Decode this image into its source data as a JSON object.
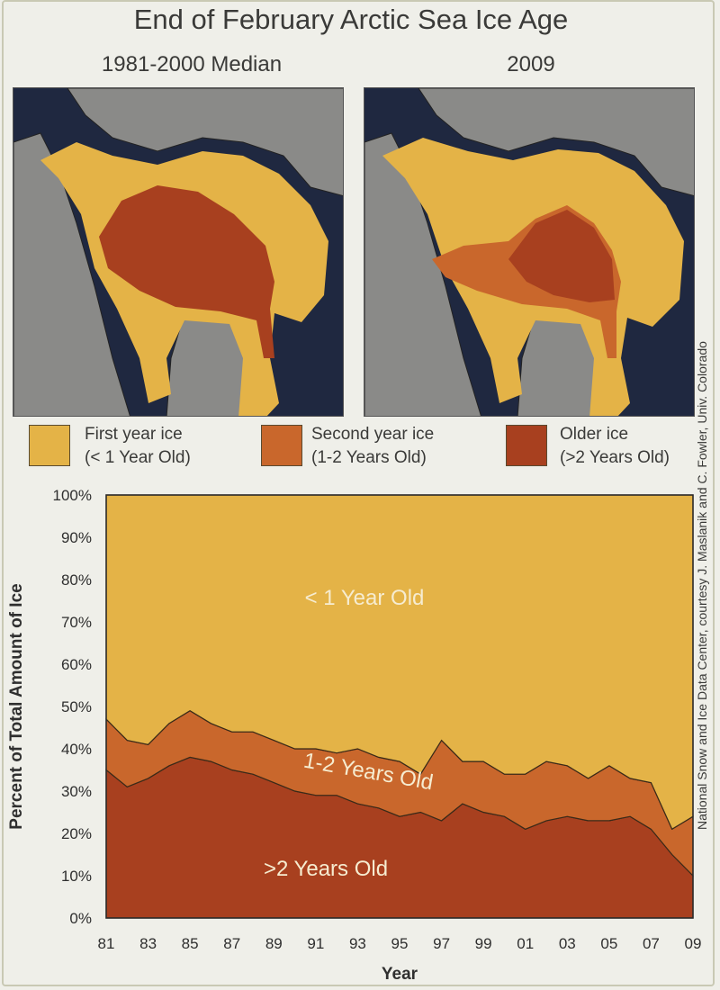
{
  "title": "End of February Arctic Sea Ice Age",
  "maps": [
    {
      "label": "1981-2000 Median"
    },
    {
      "label": "2009"
    }
  ],
  "legend": [
    {
      "line1": "First year ice",
      "line2": "(< 1 Year Old)",
      "color": "#e4b347"
    },
    {
      "line1": "Second year ice",
      "line2": "(1-2 Years Old)",
      "color": "#c9672c"
    },
    {
      "line1": "Older ice",
      "line2": "(>2 Years Old)",
      "color": "#a8401f"
    }
  ],
  "credit": "National Snow and Ice Data Center, courtesy J. Maslanik and C. Fowler, Univ. Colorado",
  "colors": {
    "first_year": "#e4b347",
    "second_year": "#c9672c",
    "older": "#a8401f",
    "land": "#8a8a88",
    "ocean": "#1f2840"
  },
  "chart_data": {
    "type": "area",
    "x": [
      1981,
      1982,
      1983,
      1984,
      1985,
      1986,
      1987,
      1988,
      1989,
      1990,
      1991,
      1992,
      1993,
      1994,
      1995,
      1996,
      1997,
      1998,
      1999,
      2000,
      2001,
      2002,
      2003,
      2004,
      2005,
      2006,
      2007,
      2008,
      2009
    ],
    "x_tick_labels": [
      "81",
      "83",
      "85",
      "87",
      "89",
      "91",
      "93",
      "95",
      "97",
      "99",
      "01",
      "03",
      "05",
      "07",
      "09"
    ],
    "y_tick_labels": [
      "0%",
      "10%",
      "20%",
      "30%",
      "40%",
      "50%",
      "60%",
      "70%",
      "80%",
      "90%",
      "100%"
    ],
    "xlabel": "Year",
    "ylabel": "Percent of Total Amount of Ice",
    "ylim": [
      0,
      100
    ],
    "series": [
      {
        "name": ">2 Years Old",
        "values": [
          35,
          31,
          33,
          36,
          38,
          37,
          35,
          34,
          32,
          30,
          29,
          29,
          27,
          26,
          24,
          25,
          23,
          27,
          25,
          24,
          21,
          23,
          24,
          23,
          23,
          24,
          21,
          15,
          10
        ]
      },
      {
        "name": "1-2 Years Old",
        "values": [
          12,
          11,
          8,
          10,
          11,
          9,
          9,
          10,
          10,
          10,
          11,
          10,
          13,
          12,
          13,
          9,
          19,
          10,
          12,
          10,
          13,
          14,
          12,
          10,
          13,
          9,
          11,
          6,
          14
        ]
      },
      {
        "name": "< 1 Year Old",
        "values": [
          53,
          58,
          59,
          54,
          51,
          54,
          56,
          56,
          58,
          60,
          60,
          61,
          60,
          62,
          63,
          66,
          58,
          63,
          63,
          66,
          66,
          63,
          64,
          67,
          64,
          67,
          68,
          79,
          76
        ]
      }
    ]
  }
}
